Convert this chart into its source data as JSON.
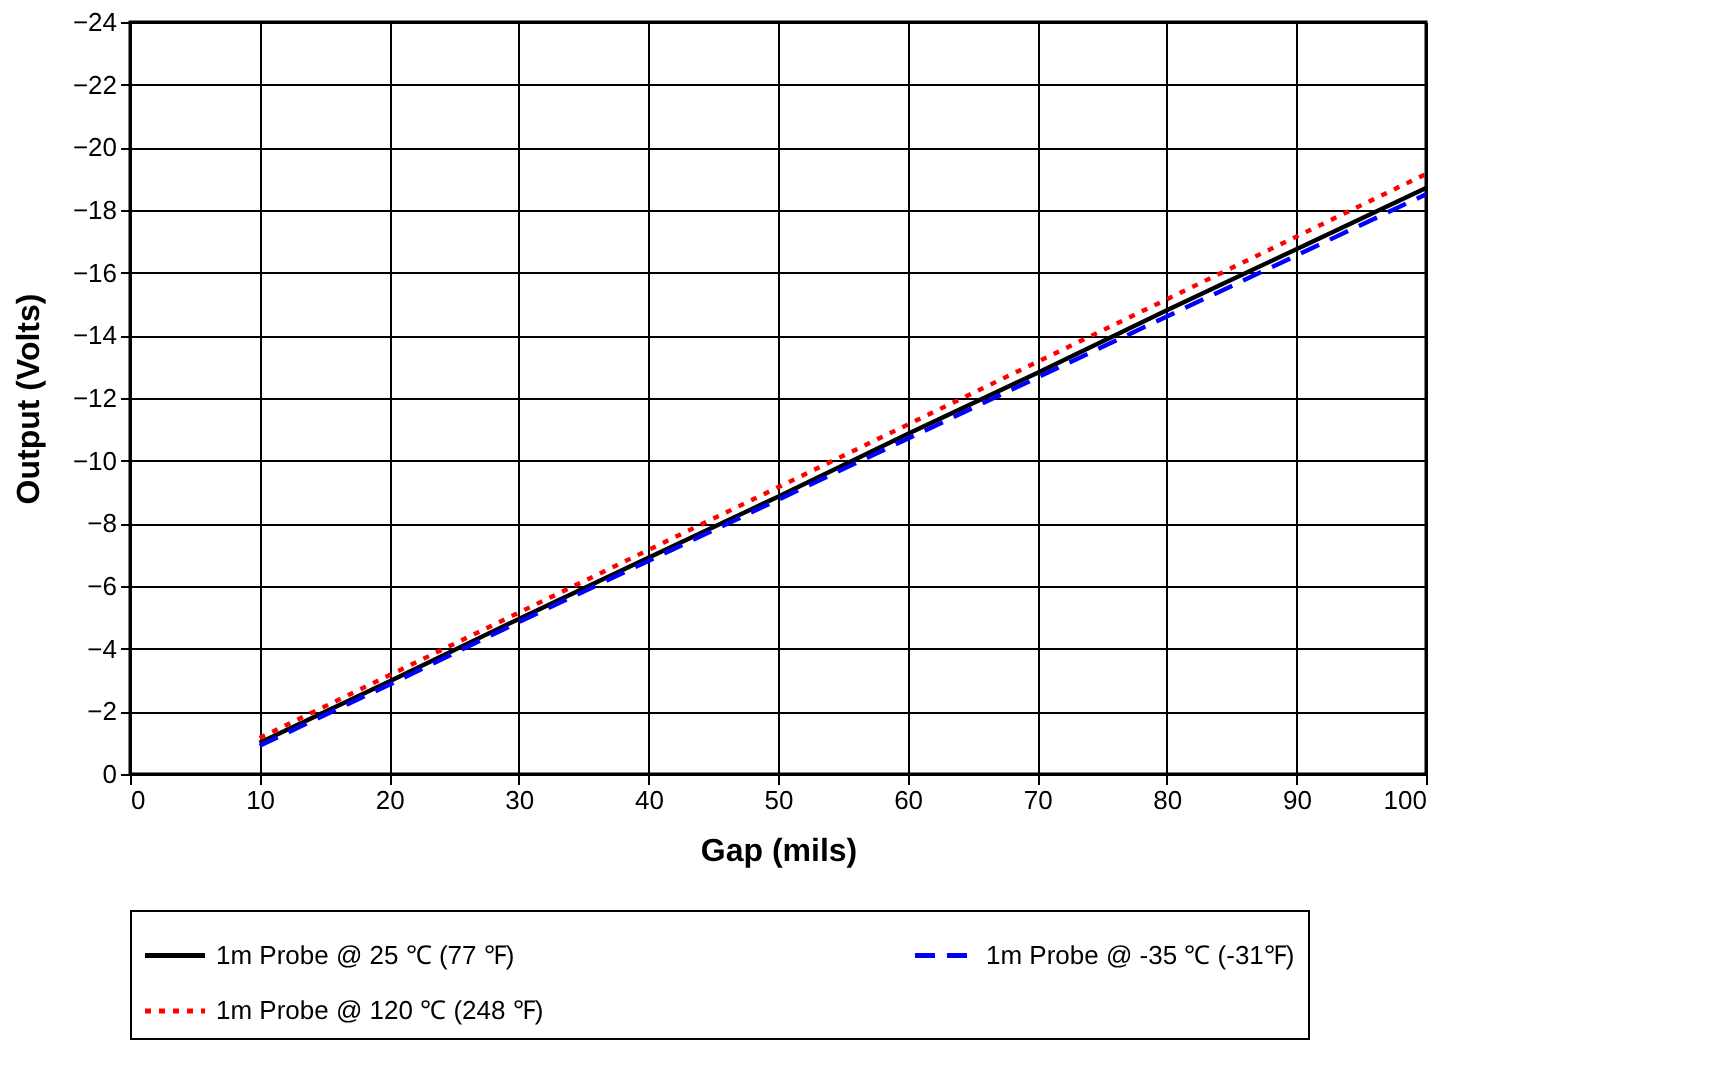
{
  "chart_data": {
    "type": "line",
    "xlabel": "Gap (mils)",
    "ylabel": "Output (Volts)",
    "x": [
      10,
      20,
      30,
      40,
      50,
      60,
      70,
      80,
      90,
      100
    ],
    "series": [
      {
        "name": "1m Probe @ 25 ℃ (77 ℉)",
        "color": "#000000",
        "line_style": "solid",
        "values": [
          -1.0,
          -2.95,
          -4.95,
          -6.9,
          -8.85,
          -10.85,
          -12.8,
          -14.8,
          -16.75,
          -18.7
        ]
      },
      {
        "name": "1m Probe @ -35 ℃ (-31℉)",
        "color": "#0000ff",
        "line_style": "dashed",
        "values": [
          -0.9,
          -2.85,
          -4.85,
          -6.8,
          -8.75,
          -10.7,
          -12.65,
          -14.6,
          -16.55,
          -18.5
        ]
      },
      {
        "name": "1m Probe @ 120 ℃ (248 ℉)",
        "color": "#ff0000",
        "line_style": "dotted",
        "values": [
          -1.15,
          -3.15,
          -5.15,
          -7.15,
          -9.15,
          -11.15,
          -13.15,
          -15.15,
          -17.15,
          -19.15
        ]
      }
    ],
    "xlim": [
      0,
      100
    ],
    "xticks": [
      0,
      10,
      20,
      30,
      40,
      50,
      60,
      70,
      80,
      90,
      100
    ],
    "ylim": [
      0,
      -24
    ],
    "yticks": [
      0,
      -2,
      -4,
      -6,
      -8,
      -10,
      -12,
      -14,
      -16,
      -18,
      -20,
      -22,
      -24
    ],
    "grid": true,
    "legend": "bottom",
    "marker": "none"
  }
}
